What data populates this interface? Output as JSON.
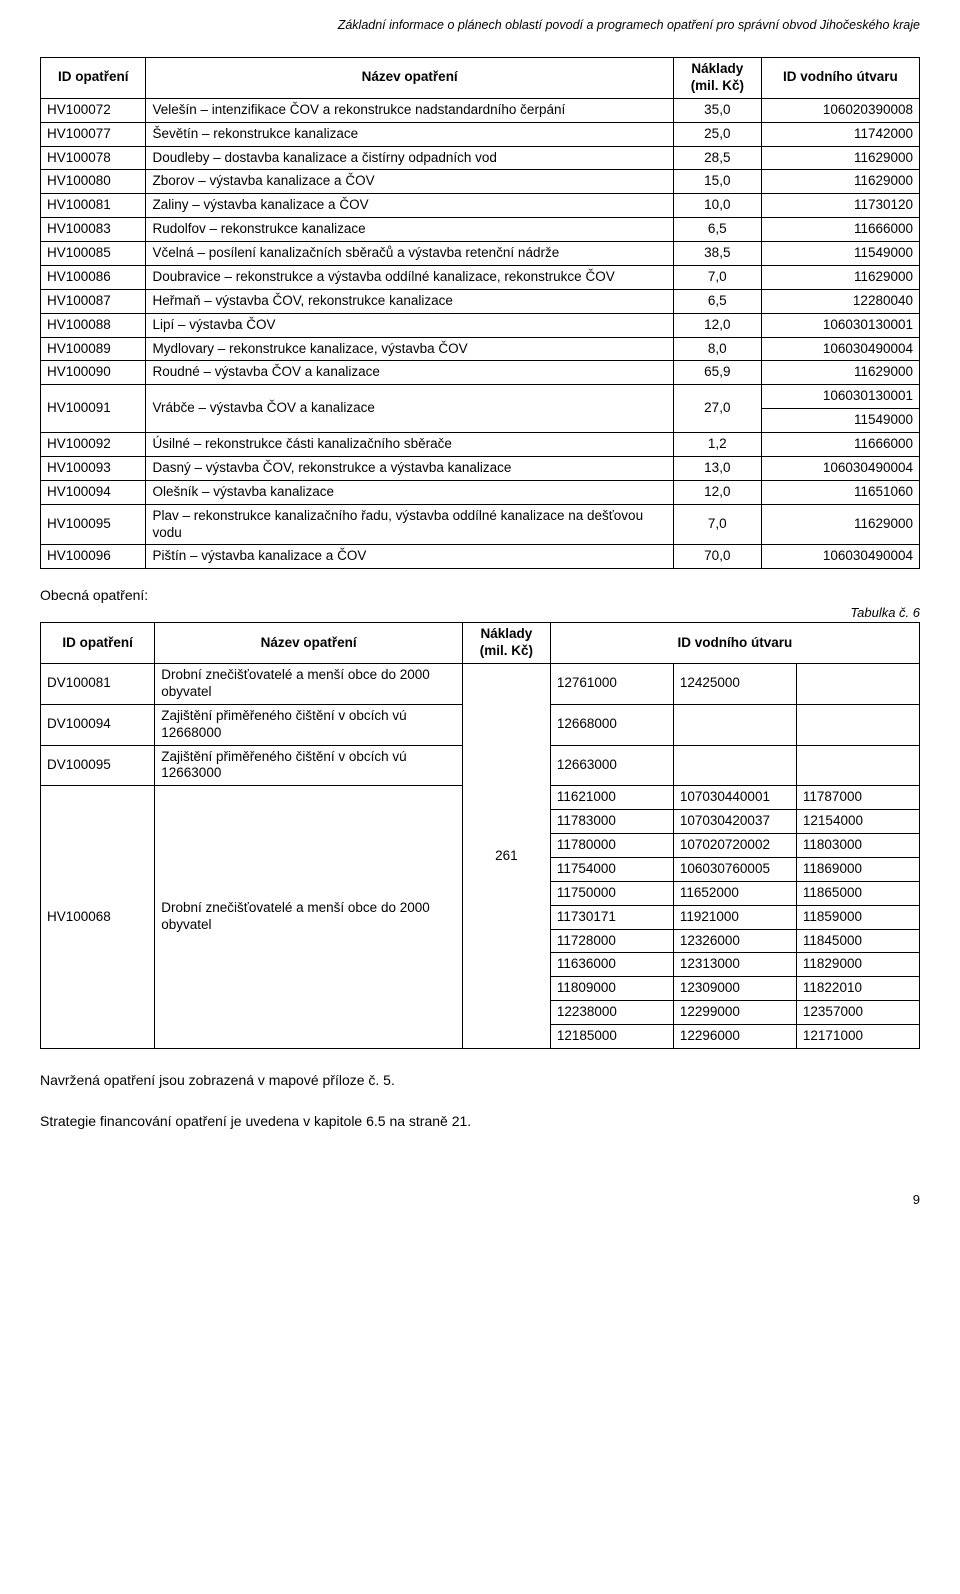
{
  "page_header": "Základní informace o plánech oblastí povodí a programech opatření pro správní obvod Jihočeského kraje",
  "page_number": "9",
  "table1": {
    "headers": {
      "id": "ID opatření",
      "name": "Název opatření",
      "cost": "Náklady (mil. Kč)",
      "unit": "ID vodního útvaru"
    },
    "rows": [
      {
        "id": "HV100072",
        "name": "Velešín – intenzifikace ČOV a rekonstrukce nadstandardního čerpání",
        "cost": "35,0",
        "unit": "106020390008"
      },
      {
        "id": "HV100077",
        "name": "Ševětín – rekonstrukce kanalizace",
        "cost": "25,0",
        "unit": "11742000"
      },
      {
        "id": "HV100078",
        "name": "Doudleby – dostavba kanalizace a čistírny odpadních vod",
        "cost": "28,5",
        "unit": "11629000"
      },
      {
        "id": "HV100080",
        "name": "Zborov – výstavba kanalizace a ČOV",
        "cost": "15,0",
        "unit": "11629000"
      },
      {
        "id": "HV100081",
        "name": "Zaliny – výstavba kanalizace a ČOV",
        "cost": "10,0",
        "unit": "11730120"
      },
      {
        "id": "HV100083",
        "name": "Rudolfov – rekonstrukce kanalizace",
        "cost": "6,5",
        "unit": "11666000"
      },
      {
        "id": "HV100085",
        "name": "Včelná – posílení kanalizačních sběračů a výstavba retenční nádrže",
        "cost": "38,5",
        "unit": "11549000"
      },
      {
        "id": "HV100086",
        "name": "Doubravice – rekonstrukce a výstavba oddílné kanalizace, rekonstrukce ČOV",
        "cost": "7,0",
        "unit": "11629000"
      },
      {
        "id": "HV100087",
        "name": "Heřmaň – výstavba ČOV, rekonstrukce kanalizace",
        "cost": "6,5",
        "unit": "12280040"
      },
      {
        "id": "HV100088",
        "name": "Lipí – výstavba ČOV",
        "cost": "12,0",
        "unit": "106030130001"
      },
      {
        "id": "HV100089",
        "name": "Mydlovary – rekonstrukce kanalizace, výstavba ČOV",
        "cost": "8,0",
        "unit": "106030490004"
      },
      {
        "id": "HV100090",
        "name": "Roudné – výstavba ČOV a kanalizace",
        "cost": "65,9",
        "unit": "11629000"
      },
      {
        "id": "HV100091",
        "name": "Vrábče – výstavba ČOV a kanalizace",
        "cost": "27,0",
        "unit": [
          "106030130001",
          "11549000"
        ]
      },
      {
        "id": "HV100092",
        "name": "Úsilné – rekonstrukce části kanalizačního sběrače",
        "cost": "1,2",
        "unit": "11666000"
      },
      {
        "id": "HV100093",
        "name": "Dasný – výstavba ČOV, rekonstrukce a výstavba kanalizace",
        "cost": "13,0",
        "unit": "106030490004"
      },
      {
        "id": "HV100094",
        "name": "Olešník – výstavba kanalizace",
        "cost": "12,0",
        "unit": "11651060"
      },
      {
        "id": "HV100095",
        "name": "Plav – rekonstrukce kanalizačního řadu, výstavba oddílné kanalizace na dešťovou vodu",
        "cost": "7,0",
        "unit": "11629000"
      },
      {
        "id": "HV100096",
        "name": "Pištín – výstavba kanalizace a ČOV",
        "cost": "70,0",
        "unit": "106030490004"
      }
    ]
  },
  "section_label": "Obecná opatření:",
  "tabulka_label": "Tabulka č. 6",
  "table2": {
    "headers": {
      "id": "ID opatření",
      "name": "Název opatření",
      "cost": "Náklady (mil. Kč)",
      "unit": "ID vodního útvaru"
    },
    "shared_cost": "261",
    "rows": [
      {
        "id": "DV100081",
        "name": "Drobní znečišťovatelé a menší obce do 2000 obyvatel",
        "units": [
          "12761000",
          "12425000",
          ""
        ]
      },
      {
        "id": "DV100094",
        "name": "Zajištění přiměřeného čištění v obcích vú 12668000",
        "units": [
          "12668000",
          "",
          ""
        ]
      },
      {
        "id": "DV100095",
        "name": "Zajištění přiměřeného čištění v obcích vú 12663000",
        "units": [
          "12663000",
          "",
          ""
        ]
      }
    ],
    "big_row": {
      "id": "HV100068",
      "name": "Drobní znečišťovatelé a menší obce do 2000 obyvatel",
      "unit_rows": [
        [
          "11621000",
          "107030440001",
          "11787000"
        ],
        [
          "11783000",
          "107030420037",
          "12154000"
        ],
        [
          "11780000",
          "107020720002",
          "11803000"
        ],
        [
          "11754000",
          "106030760005",
          "11869000"
        ],
        [
          "11750000",
          "11652000",
          "11865000"
        ],
        [
          "11730171",
          "11921000",
          "11859000"
        ],
        [
          "11728000",
          "12326000",
          "11845000"
        ],
        [
          "11636000",
          "12313000",
          "11829000"
        ],
        [
          "11809000",
          "12309000",
          "11822010"
        ],
        [
          "12238000",
          "12299000",
          "12357000"
        ],
        [
          "12185000",
          "12296000",
          "12171000"
        ]
      ]
    }
  },
  "body_line1": "Navržená opatření jsou zobrazená v mapové příloze č. 5.",
  "body_line2": "Strategie financování opatření je uvedena v kapitole 6.5 na straně 21."
}
